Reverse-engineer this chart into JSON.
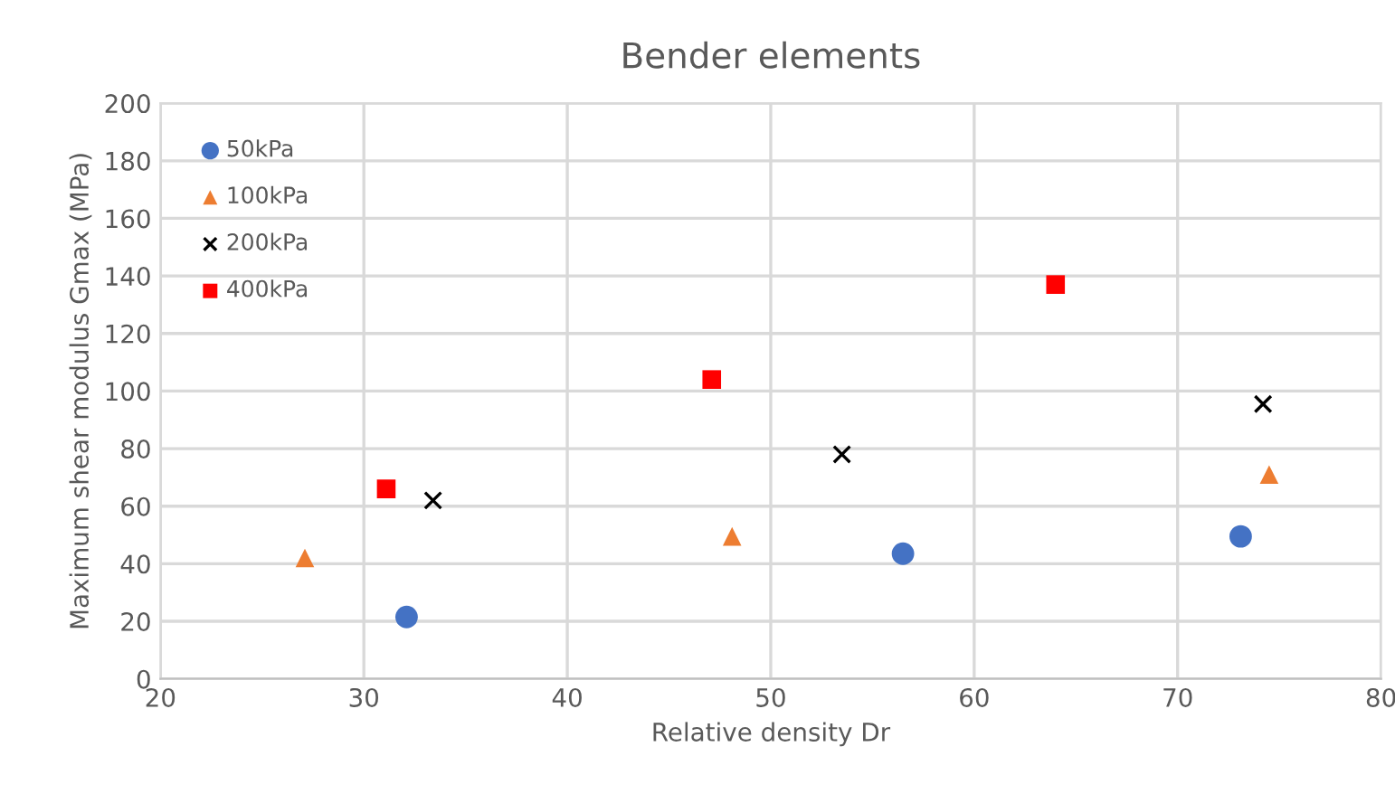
{
  "chart_data": {
    "type": "scatter",
    "title": "Bender elements",
    "xlabel": "Relative density Dr",
    "ylabel": "Maximum shear modulus Gmax (MPa)",
    "xlim": [
      20,
      80
    ],
    "xticks": [
      20,
      30,
      40,
      50,
      60,
      70,
      80
    ],
    "ylim": [
      0,
      200
    ],
    "yticks": [
      0,
      20,
      40,
      60,
      80,
      100,
      120,
      140,
      160,
      180,
      200
    ],
    "grid": true,
    "legend": "top left",
    "series": [
      {
        "name": "50kPa",
        "color": "#4472c4",
        "marker": "circle",
        "x": [
          32.1,
          56.5,
          73.1
        ],
        "values": [
          21.5,
          43.5,
          49.5
        ]
      },
      {
        "name": "100kPa",
        "color": "#ed7d31",
        "marker": "triangle",
        "x": [
          27.1,
          48.1,
          74.5
        ],
        "values": [
          42,
          49.5,
          71
        ]
      },
      {
        "name": "200kPa",
        "color": "#000000",
        "marker": "cross",
        "x": [
          33.4,
          53.5,
          74.2
        ],
        "values": [
          62,
          78,
          95.5
        ]
      },
      {
        "name": "400kPa",
        "color": "#ff0000",
        "marker": "square",
        "x": [
          31.1,
          47.1,
          64
        ],
        "values": [
          66,
          104,
          137
        ]
      }
    ]
  }
}
